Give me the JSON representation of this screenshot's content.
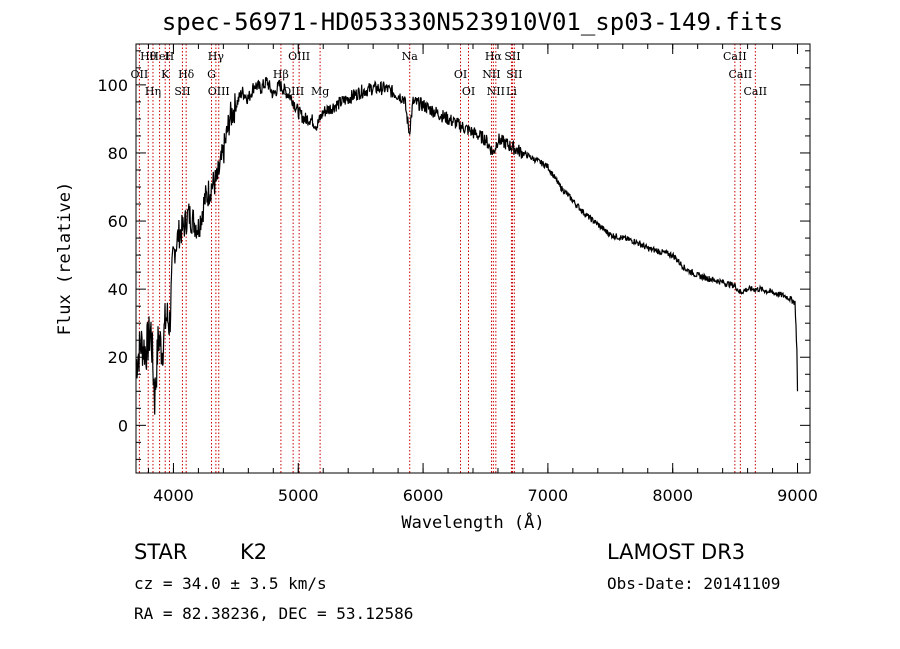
{
  "header": {
    "title": "spec-56971-HD053330N523910V01_sp03-149.fits"
  },
  "info": {
    "object_class": "STAR",
    "subclass": "K2",
    "survey": "LAMOST DR3",
    "redshift": "cz = 34.0 ± 3.5 km/s",
    "obs_date": "Obs-Date: 20141109",
    "coords": "RA =  82.38236, DEC =  53.12586"
  },
  "colors": {
    "line": "#000000",
    "marker": "#cc0000"
  },
  "chart_data": {
    "type": "line",
    "title": "spec-56971-HD053330N523910V01_sp03-149.fits",
    "xlabel": "Wavelength (Å)",
    "ylabel": "Flux (relative)",
    "xlim": [
      3700,
      9100
    ],
    "ylim": [
      -14,
      112
    ],
    "xticks": [
      4000,
      5000,
      6000,
      7000,
      8000,
      9000
    ],
    "yticks": [
      0,
      20,
      40,
      60,
      80,
      100
    ],
    "series": [
      {
        "name": "flux",
        "x": [
          3700,
          3740,
          3780,
          3820,
          3850,
          3880,
          3910,
          3940,
          3970,
          4000,
          4040,
          4080,
          4120,
          4160,
          4200,
          4250,
          4300,
          4350,
          4400,
          4450,
          4500,
          4550,
          4600,
          4650,
          4700,
          4750,
          4800,
          4850,
          4900,
          4950,
          5000,
          5050,
          5100,
          5150,
          5200,
          5300,
          5400,
          5500,
          5600,
          5700,
          5800,
          5850,
          5890,
          5920,
          6000,
          6100,
          6200,
          6300,
          6400,
          6500,
          6563,
          6600,
          6700,
          6800,
          6900,
          7000,
          7100,
          7200,
          7300,
          7400,
          7500,
          7600,
          7700,
          7800,
          7900,
          8000,
          8100,
          8200,
          8300,
          8400,
          8500,
          8540,
          8600,
          8700,
          8800,
          8900,
          8950,
          8980,
          8995,
          9000
        ],
        "y": [
          18,
          24,
          22,
          28,
          8,
          26,
          22,
          32,
          30,
          50,
          56,
          58,
          62,
          60,
          58,
          66,
          70,
          72,
          80,
          90,
          94,
          98,
          96,
          100,
          99,
          101,
          97,
          100,
          98,
          96,
          92,
          90,
          90,
          88,
          92,
          94,
          96,
          98,
          99,
          99,
          97,
          96,
          86,
          95,
          94,
          92,
          90,
          88,
          86,
          84,
          80,
          84,
          82,
          80,
          78,
          76,
          70,
          66,
          62,
          59,
          56,
          55,
          54,
          52,
          51,
          50,
          46,
          44,
          43,
          42,
          41,
          39,
          40,
          40,
          39,
          38,
          37,
          36,
          22,
          10
        ]
      }
    ],
    "lines": [
      {
        "label": "Hθ",
        "wavelength": 3798
      },
      {
        "label": "OII",
        "wavelength": 3727
      },
      {
        "label": "Hη",
        "wavelength": 3836
      },
      {
        "label": "HeI",
        "wavelength": 3889
      },
      {
        "label": "K",
        "wavelength": 3934
      },
      {
        "label": "SII",
        "wavelength": 4072
      },
      {
        "label": "H",
        "wavelength": 3968
      },
      {
        "label": "Hδ",
        "wavelength": 4102
      },
      {
        "label": "OIII",
        "wavelength": 4363
      },
      {
        "label": "Hγ",
        "wavelength": 4340
      },
      {
        "label": "G",
        "wavelength": 4305
      },
      {
        "label": "OIII",
        "wavelength": 4959
      },
      {
        "label": "OIII",
        "wavelength": 5007
      },
      {
        "label": "Hβ",
        "wavelength": 4861
      },
      {
        "label": "Mg",
        "wavelength": 5175
      },
      {
        "label": "Na",
        "wavelength": 5893
      },
      {
        "label": "OI",
        "wavelength": 6300
      },
      {
        "label": "OI",
        "wavelength": 6364
      },
      {
        "label": "Hα",
        "wavelength": 6563
      },
      {
        "label": "NII",
        "wavelength": 6548
      },
      {
        "label": "NII",
        "wavelength": 6583
      },
      {
        "label": "SII",
        "wavelength": 6716
      },
      {
        "label": "SII",
        "wavelength": 6731
      },
      {
        "label": "Li",
        "wavelength": 6708
      },
      {
        "label": "CaII",
        "wavelength": 8498
      },
      {
        "label": "CaII",
        "wavelength": 8542
      },
      {
        "label": "CaII",
        "wavelength": 8662
      }
    ]
  }
}
